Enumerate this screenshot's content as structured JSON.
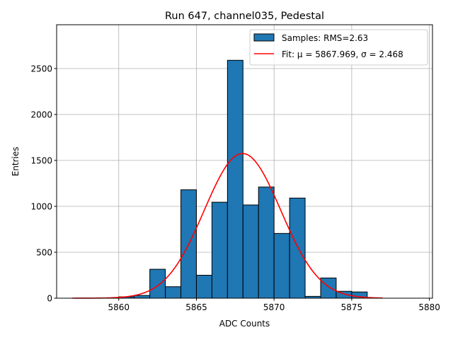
{
  "chart_data": {
    "type": "bar",
    "title": "Run 647, channel035, Pedestal",
    "xlabel": "ADC Counts",
    "ylabel": "Entries",
    "xlim": [
      5856,
      5880.2
    ],
    "ylim": [
      0,
      2977
    ],
    "xticks": [
      5860,
      5865,
      5870,
      5875,
      5880
    ],
    "yticks": [
      0,
      500,
      1000,
      1500,
      2000,
      2500
    ],
    "grid": true,
    "legend_placement": "top-right",
    "histogram": {
      "name": "Samples: RMS=2.63",
      "color": "#1f77b4",
      "edgecolor": "#000000",
      "bin_edges": [
        5860,
        5861,
        5862,
        5863,
        5864,
        5865,
        5866,
        5867,
        5868,
        5869,
        5870,
        5871,
        5872,
        5873,
        5874,
        5875,
        5876
      ],
      "values": [
        15,
        30,
        315,
        125,
        1180,
        250,
        1045,
        2590,
        1015,
        1210,
        705,
        1090,
        20,
        220,
        75,
        68
      ]
    },
    "fit": {
      "name": "Fit: μ = 5867.969, σ = 2.468",
      "color": "#ff0000",
      "mu": 5867.969,
      "sigma": 2.468,
      "amplitude": 1575,
      "x_range": [
        5857,
        5877
      ]
    }
  }
}
